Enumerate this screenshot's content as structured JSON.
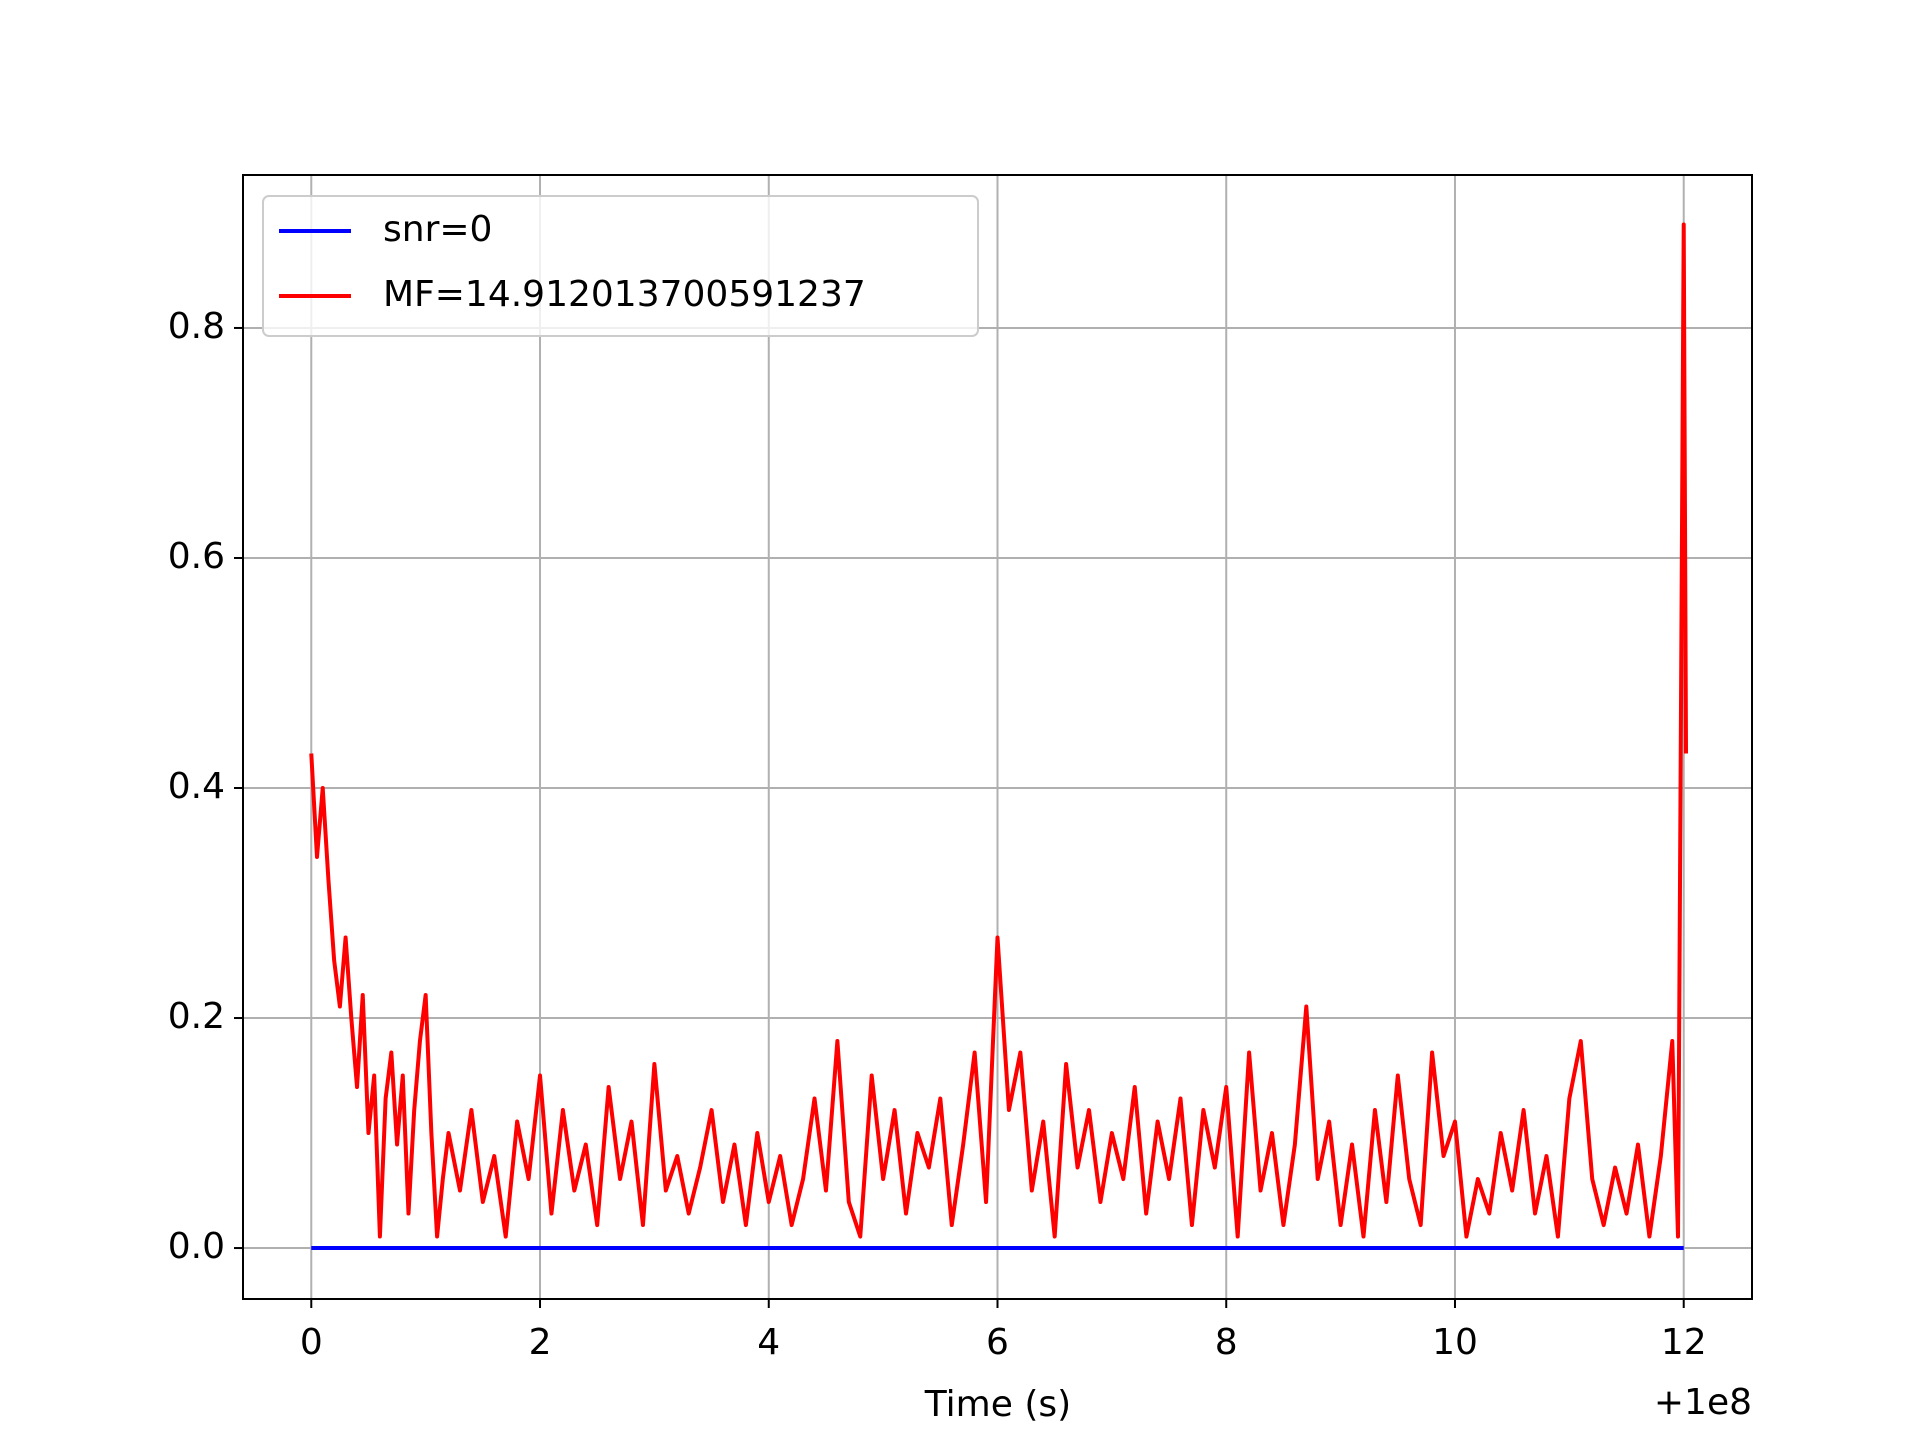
{
  "chart_data": {
    "type": "line",
    "x_label": "Time (s)",
    "x_offset_label": "+1e8",
    "xlim": [
      -0.597,
      12.597
    ],
    "xticks": [
      0,
      2,
      4,
      6,
      8,
      10,
      12
    ],
    "ylim": [
      -0.0443,
      0.933
    ],
    "yticks": [
      {
        "value": 0,
        "label": "0.0"
      },
      0.2,
      0.4,
      0.6,
      0.8
    ],
    "grid": true,
    "legend": "upper left",
    "series": [
      {
        "name": "snr=0",
        "color": "#0000ff",
        "x": [
          0,
          12
        ],
        "values": [
          0,
          0
        ]
      },
      {
        "name": "MF=14.912013700591237",
        "color": "#ff0000",
        "x": [
          0,
          0.05,
          0.1,
          0.15,
          0.2,
          0.25,
          0.3,
          0.35,
          0.4,
          0.45,
          0.5,
          0.55,
          0.6,
          0.65,
          0.7,
          0.75,
          0.8,
          0.85,
          0.9,
          0.95,
          1.0,
          1.05,
          1.1,
          1.15,
          1.2,
          1.3,
          1.4,
          1.5,
          1.6,
          1.7,
          1.8,
          1.9,
          2.0,
          2.1,
          2.2,
          2.3,
          2.4,
          2.5,
          2.6,
          2.7,
          2.8,
          2.9,
          3.0,
          3.1,
          3.2,
          3.3,
          3.4,
          3.5,
          3.6,
          3.7,
          3.8,
          3.9,
          4.0,
          4.1,
          4.2,
          4.3,
          4.4,
          4.5,
          4.6,
          4.7,
          4.8,
          4.9,
          5.0,
          5.1,
          5.2,
          5.3,
          5.4,
          5.5,
          5.6,
          5.7,
          5.8,
          5.9,
          6.0,
          6.1,
          6.2,
          6.3,
          6.4,
          6.5,
          6.6,
          6.7,
          6.8,
          6.9,
          7.0,
          7.1,
          7.2,
          7.3,
          7.4,
          7.5,
          7.6,
          7.7,
          7.8,
          7.9,
          8.0,
          8.1,
          8.2,
          8.3,
          8.4,
          8.5,
          8.6,
          8.7,
          8.8,
          8.9,
          9.0,
          9.1,
          9.2,
          9.3,
          9.4,
          9.5,
          9.6,
          9.7,
          9.8,
          9.9,
          10.0,
          10.1,
          10.2,
          10.3,
          10.4,
          10.5,
          10.6,
          10.7,
          10.8,
          10.9,
          11.0,
          11.1,
          11.2,
          11.3,
          11.4,
          11.5,
          11.6,
          11.7,
          11.8,
          11.9,
          11.95,
          12.0,
          12.02
        ],
        "values": [
          0.43,
          0.34,
          0.4,
          0.32,
          0.25,
          0.21,
          0.27,
          0.2,
          0.14,
          0.22,
          0.1,
          0.15,
          0.01,
          0.13,
          0.17,
          0.09,
          0.15,
          0.03,
          0.12,
          0.18,
          0.22,
          0.1,
          0.01,
          0.06,
          0.1,
          0.05,
          0.12,
          0.04,
          0.08,
          0.01,
          0.11,
          0.06,
          0.15,
          0.03,
          0.12,
          0.05,
          0.09,
          0.02,
          0.14,
          0.06,
          0.11,
          0.02,
          0.16,
          0.05,
          0.08,
          0.03,
          0.07,
          0.12,
          0.04,
          0.09,
          0.02,
          0.1,
          0.04,
          0.08,
          0.02,
          0.06,
          0.13,
          0.05,
          0.18,
          0.04,
          0.01,
          0.15,
          0.06,
          0.12,
          0.03,
          0.1,
          0.07,
          0.13,
          0.02,
          0.09,
          0.17,
          0.04,
          0.27,
          0.12,
          0.17,
          0.05,
          0.11,
          0.01,
          0.16,
          0.07,
          0.12,
          0.04,
          0.1,
          0.06,
          0.14,
          0.03,
          0.11,
          0.06,
          0.13,
          0.02,
          0.12,
          0.07,
          0.14,
          0.01,
          0.17,
          0.05,
          0.1,
          0.02,
          0.09,
          0.21,
          0.06,
          0.11,
          0.02,
          0.09,
          0.01,
          0.12,
          0.04,
          0.15,
          0.06,
          0.02,
          0.17,
          0.08,
          0.11,
          0.01,
          0.06,
          0.03,
          0.1,
          0.05,
          0.12,
          0.03,
          0.08,
          0.01,
          0.13,
          0.18,
          0.06,
          0.02,
          0.07,
          0.03,
          0.09,
          0.01,
          0.08,
          0.18,
          0.01,
          0.89,
          0.43
        ]
      }
    ]
  }
}
